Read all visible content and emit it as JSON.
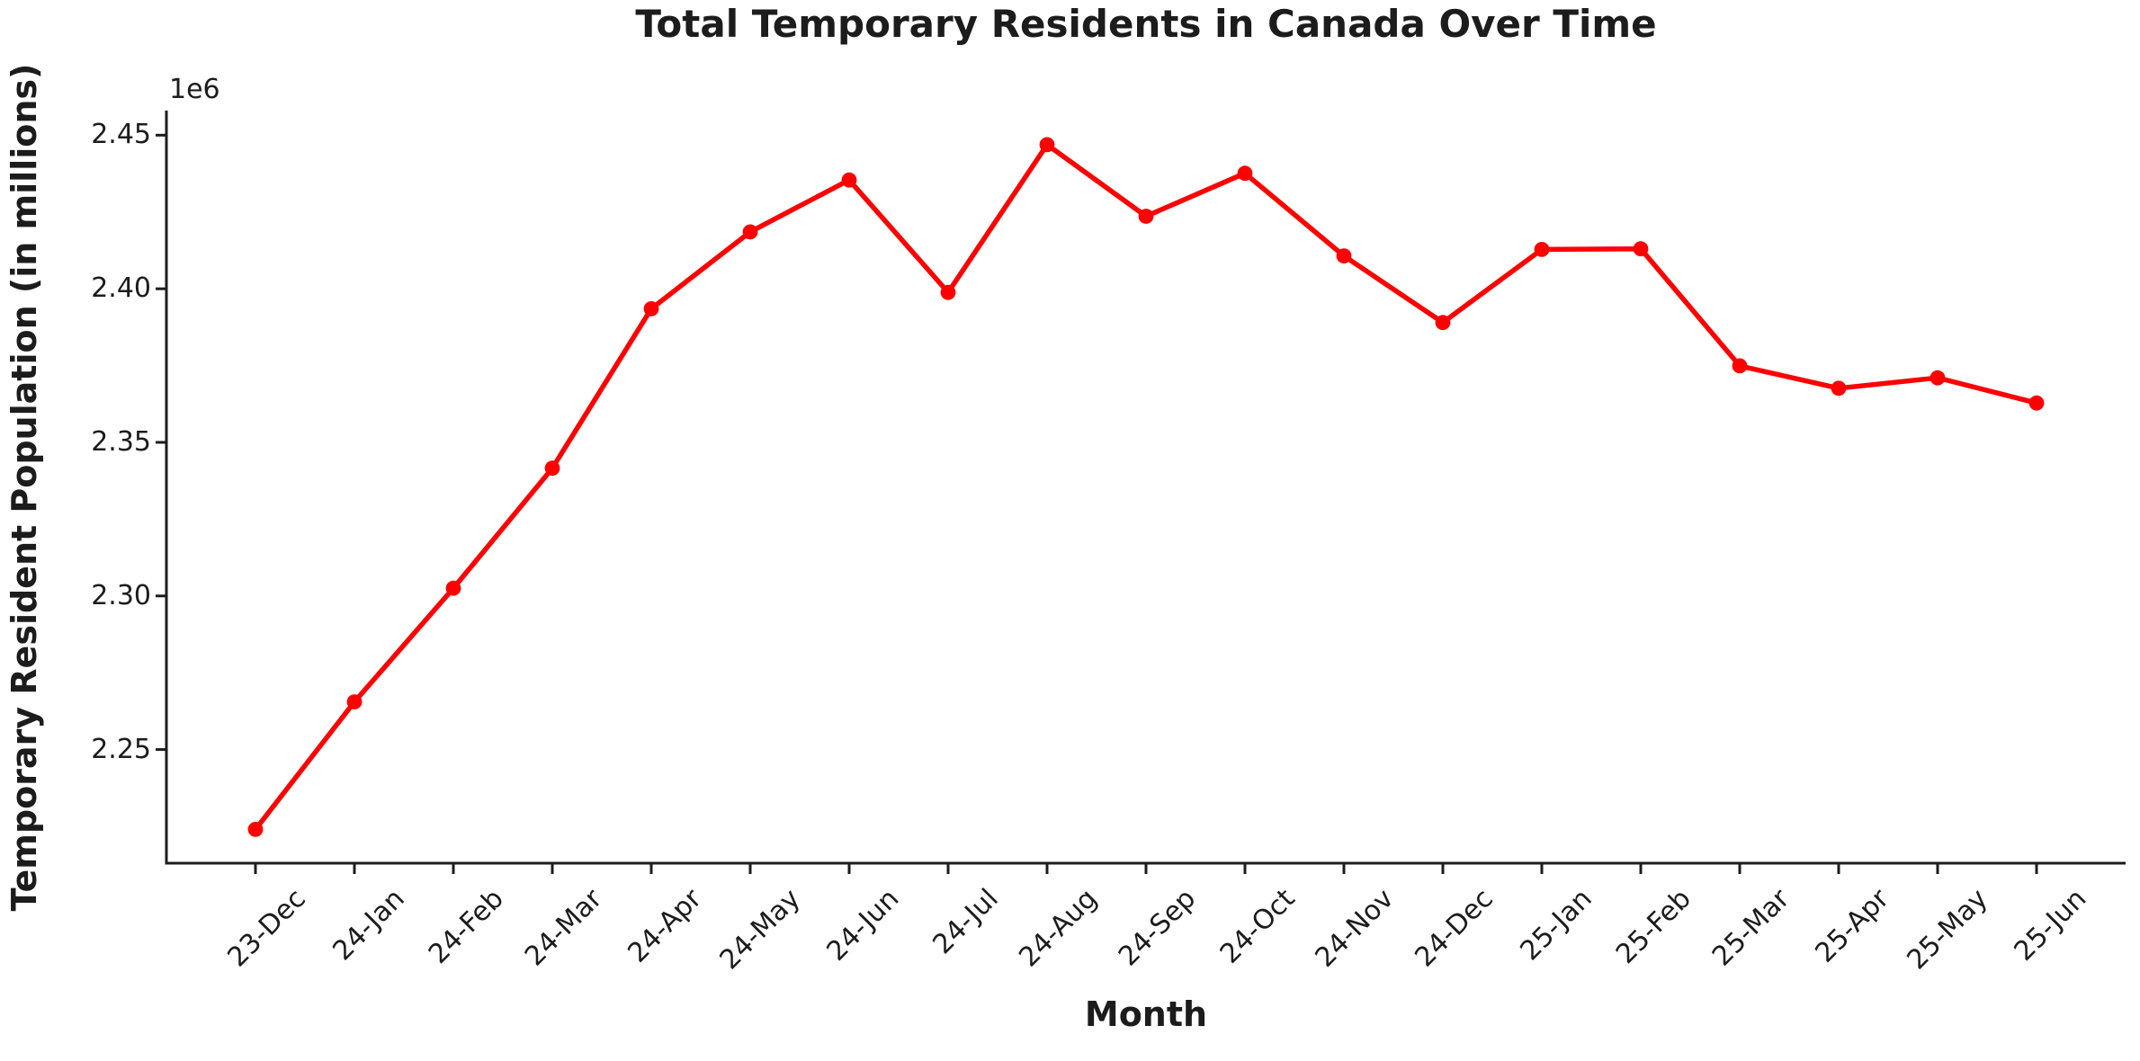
{
  "chart_data": {
    "type": "line",
    "title": "Total Temporary Residents in Canada Over Time",
    "xlabel": "Month",
    "ylabel": "Temporary Resident Population (in millions)",
    "y_offset_label": "1e6",
    "series_name": "Total Temporary Residents",
    "categories": [
      "23-Dec",
      "24-Jan",
      "24-Feb",
      "24-Mar",
      "24-Apr",
      "24-May",
      "24-Jun",
      "24-Jul",
      "24-Aug",
      "24-Sep",
      "24-Oct",
      "24-Nov",
      "24-Dec",
      "25-Jan",
      "25-Feb",
      "25-Mar",
      "25-Apr",
      "25-May",
      "25-Jun"
    ],
    "values": [
      2224000,
      2265500,
      2302500,
      2341600,
      2393500,
      2418500,
      2435400,
      2398800,
      2446900,
      2423600,
      2437600,
      2410700,
      2389000,
      2412800,
      2413000,
      2374900,
      2367600,
      2371000,
      2362800
    ],
    "ylim": [
      2213000,
      2458000
    ],
    "yticks": [
      2250000,
      2300000,
      2350000,
      2400000,
      2450000
    ],
    "ytick_labels": [
      "2.25",
      "2.30",
      "2.35",
      "2.40",
      "2.45"
    ],
    "grid": false,
    "legend": null,
    "line_color": "#ff0000",
    "marker": "circle",
    "axis_color": "#1c1c1c"
  }
}
